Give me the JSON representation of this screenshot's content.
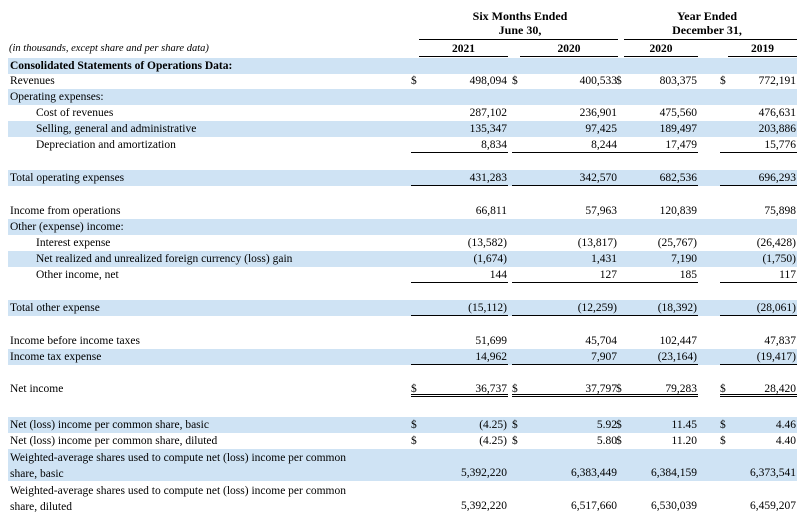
{
  "header": {
    "group1_line1": "Six Months Ended",
    "group1_line2": "June 30,",
    "group2_line1": "Year Ended",
    "group2_line2": "December 31,",
    "note": "(in thousands, except share and per share data)",
    "years": [
      "2021",
      "2020",
      "2020",
      "2019"
    ]
  },
  "rows": [
    {
      "label": "Consolidated Statements of Operations Data:",
      "bold": true,
      "shade": true,
      "indent": 0,
      "vals": [
        "",
        "",
        "",
        ""
      ]
    },
    {
      "label": "Revenues",
      "indent": 0,
      "cur": true,
      "vals": [
        "498,094",
        "400,533",
        "803,375",
        "772,191"
      ]
    },
    {
      "label": "Operating expenses:",
      "indent": 0,
      "shade": true,
      "vals": [
        "",
        "",
        "",
        ""
      ]
    },
    {
      "label": "Cost of revenues",
      "indent": 1,
      "vals": [
        "287,102",
        "236,901",
        "475,560",
        "476,631"
      ]
    },
    {
      "label": "Selling, general and administrative",
      "indent": 1,
      "shade": true,
      "vals": [
        "135,347",
        "97,425",
        "189,497",
        "203,886"
      ]
    },
    {
      "label": "Depreciation and amortization",
      "indent": 1,
      "ul": true,
      "vals": [
        "8,834",
        "8,244",
        "17,479",
        "15,776"
      ]
    },
    {
      "label": "Total operating expenses",
      "indent": 0,
      "shade": true,
      "ul": true,
      "vals": [
        "431,283",
        "342,570",
        "682,536",
        "696,293"
      ]
    },
    {
      "label": "Income from operations",
      "indent": 0,
      "vals": [
        "66,811",
        "57,963",
        "120,839",
        "75,898"
      ]
    },
    {
      "label": "Other (expense) income:",
      "indent": 0,
      "shade": true,
      "vals": [
        "",
        "",
        "",
        ""
      ]
    },
    {
      "label": "Interest expense",
      "indent": 1,
      "vals": [
        "(13,582)",
        "(13,817)",
        "(25,767)",
        "(26,428)"
      ]
    },
    {
      "label": "Net realized and unrealized foreign currency (loss) gain",
      "indent": 1,
      "shade": true,
      "vals": [
        "(1,674)",
        "1,431",
        "7,190",
        "(1,750)"
      ]
    },
    {
      "label": "Other income, net",
      "indent": 1,
      "ul": true,
      "vals": [
        "144",
        "127",
        "185",
        "117"
      ]
    },
    {
      "label": "Total other expense",
      "indent": 0,
      "shade": true,
      "ul": true,
      "vals": [
        "(15,112)",
        "(12,259)",
        "(18,392)",
        "(28,061)"
      ]
    },
    {
      "label": "Income before income taxes",
      "indent": 0,
      "vals": [
        "51,699",
        "45,704",
        "102,447",
        "47,837"
      ]
    },
    {
      "label": "Income tax expense",
      "indent": 0,
      "shade": true,
      "ul": true,
      "vals": [
        "14,962",
        "7,907",
        "(23,164)",
        "(19,417)"
      ]
    },
    {
      "label": "Net income",
      "indent": 0,
      "cur": true,
      "dul": true,
      "vals": [
        "36,737",
        "37,797",
        "79,283",
        "28,420"
      ]
    },
    {
      "label": "Net (loss) income per common share, basic",
      "indent": 0,
      "shade": true,
      "cur": true,
      "vals": [
        "(4.25)",
        "5.92",
        "11.45",
        "4.46"
      ]
    },
    {
      "label": "Net (loss) income per common share, diluted",
      "indent": 0,
      "cur": true,
      "vals": [
        "(4.25)",
        "5.80",
        "11.20",
        "4.40"
      ]
    },
    {
      "label": "Weighted-average shares used to compute net (loss) income per common share, basic",
      "indent": 0,
      "shade": true,
      "wrap": true,
      "vals": [
        "5,392,220",
        "6,383,449",
        "6,384,159",
        "6,373,541"
      ]
    },
    {
      "label": "Weighted-average shares used to compute net (loss) income per common share, diluted",
      "indent": 0,
      "wrap": true,
      "vals": [
        "5,392,220",
        "6,517,660",
        "6,530,039",
        "6,459,207"
      ]
    }
  ],
  "currency_symbol": "$"
}
